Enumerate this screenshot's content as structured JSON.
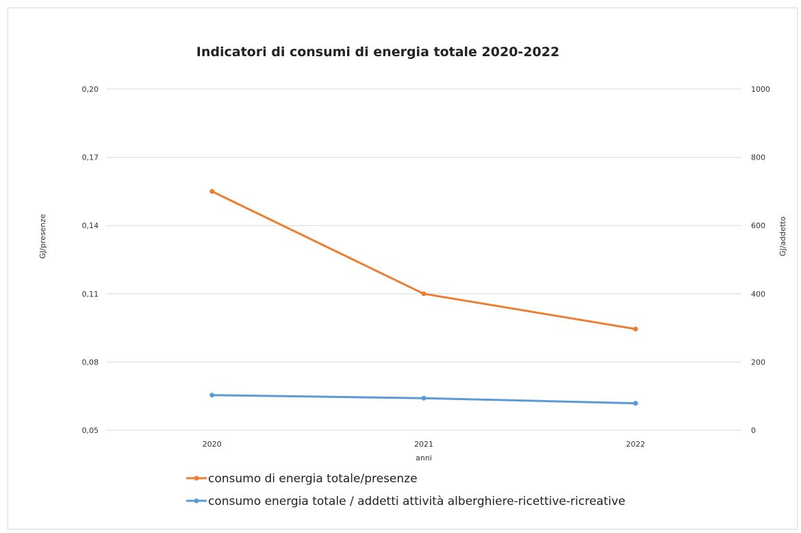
{
  "chart_data": {
    "type": "line",
    "title": "Indicatori di consumi di energia totale 2020-2022",
    "xlabel": "anni",
    "ylabel": "GJ/presenze",
    "y2label": "GJ/addetto",
    "categories": [
      "2020",
      "2021",
      "2022"
    ],
    "ylim": [
      0.05,
      0.2
    ],
    "yticks": [
      "0,05",
      "0,08",
      "0,11",
      "0,14",
      "0,17",
      "0,20"
    ],
    "y2lim": [
      0,
      1000
    ],
    "y2ticks": [
      "0",
      "200",
      "400",
      "600",
      "800",
      "1000"
    ],
    "grid": true,
    "legend_position": "bottom",
    "series": [
      {
        "name": "consumo di energia totale/presenze",
        "axis": "left",
        "color": "#ED7D31",
        "values": [
          0.155,
          0.11,
          0.0945
        ]
      },
      {
        "name": "consumo energia totale / addetti attività alberghiere-ricettive-ricreative",
        "axis": "right",
        "color": "#5B9BD5",
        "values": [
          103,
          94,
          79
        ]
      }
    ]
  }
}
